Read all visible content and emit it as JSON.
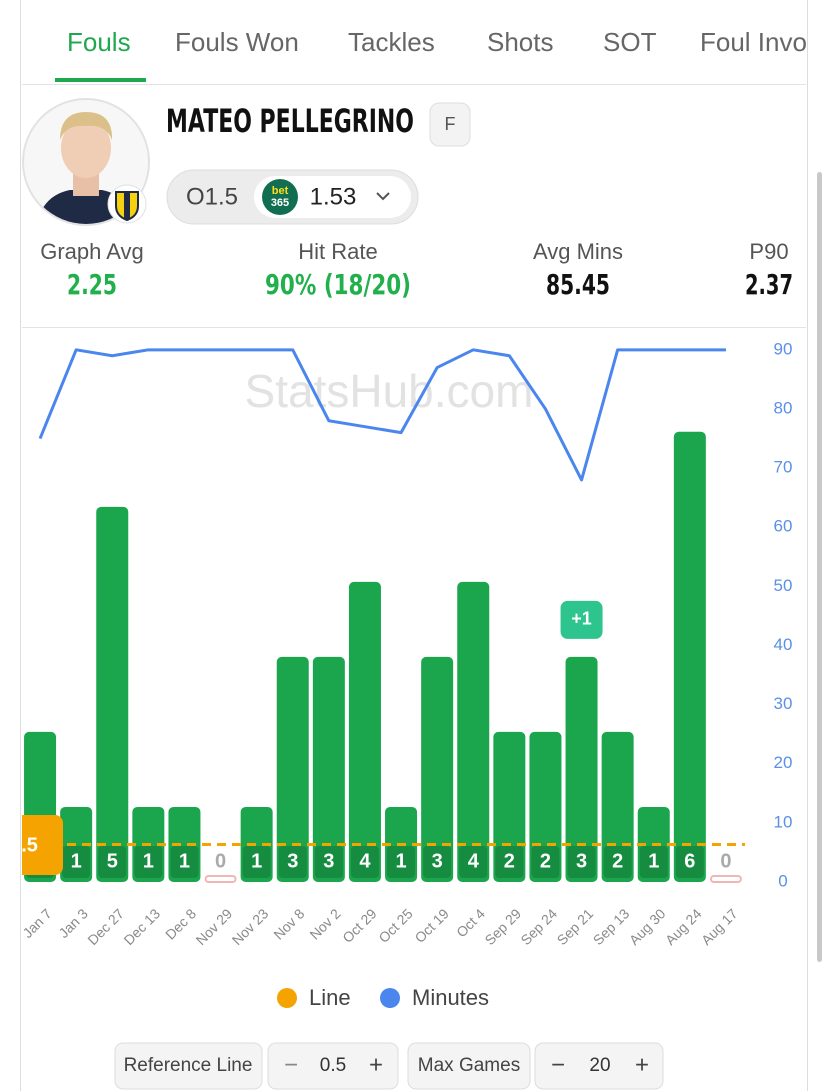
{
  "tabs": [
    "Fouls",
    "Fouls Won",
    "Tackles",
    "Shots",
    "SOT",
    "Foul Invo"
  ],
  "player": {
    "name": "MATEO PELLEGRINO",
    "position": "F"
  },
  "line_selector": {
    "line": "O1.5",
    "bookmaker_logo": [
      "bet",
      "365"
    ],
    "odds": 1.53
  },
  "stats": [
    {
      "label": "Graph Avg",
      "value": 2.25
    },
    {
      "label": "Hit Rate",
      "value": "90% (18/20)"
    },
    {
      "label": "Avg Mins",
      "value": 85.45
    },
    {
      "label": "P90",
      "value": 2.37
    }
  ],
  "watermark": "StatsHub.com",
  "chart_data": {
    "type": "bar",
    "categories": [
      "Jan 7",
      "Jan 3",
      "Dec 27",
      "Dec 13",
      "Dec 8",
      "Nov 29",
      "Nov 23",
      "Nov 8",
      "Nov 2",
      "Oct 29",
      "Oct 25",
      "Oct 19",
      "Oct 4",
      "Sep 29",
      "Sep 24",
      "Sep 21",
      "Sep 13",
      "Aug 30",
      "Aug 24",
      "Aug 17"
    ],
    "values": [
      2,
      1,
      5,
      1,
      1,
      0,
      1,
      3,
      3,
      4,
      1,
      3,
      4,
      2,
      2,
      3,
      2,
      1,
      6,
      0
    ],
    "color": "#1ba64e",
    "ylim": [
      0,
      7.25
    ],
    "series": [
      {
        "name": "Minutes",
        "color": "#4a86ee",
        "axis": "y2",
        "values": [
          75,
          90,
          89,
          90,
          90,
          90,
          90,
          90,
          78,
          77,
          76,
          87,
          90,
          89,
          80,
          68,
          90,
          90,
          90,
          90
        ]
      }
    ],
    "y2lim": [
      0,
      92
    ],
    "y2ticks": [
      0,
      10,
      20,
      30,
      40,
      50,
      60,
      70,
      80,
      90
    ],
    "reference_line": {
      "name": "Line",
      "value": 0.5,
      "color": "#f5a300"
    },
    "annotations": [
      {
        "text": "+1",
        "category": "Sep 21"
      }
    ]
  },
  "controls": {
    "reference_line": {
      "label": "Reference Line",
      "value": 0.5
    },
    "max_games": {
      "label": "Max Games",
      "value": 20
    }
  }
}
